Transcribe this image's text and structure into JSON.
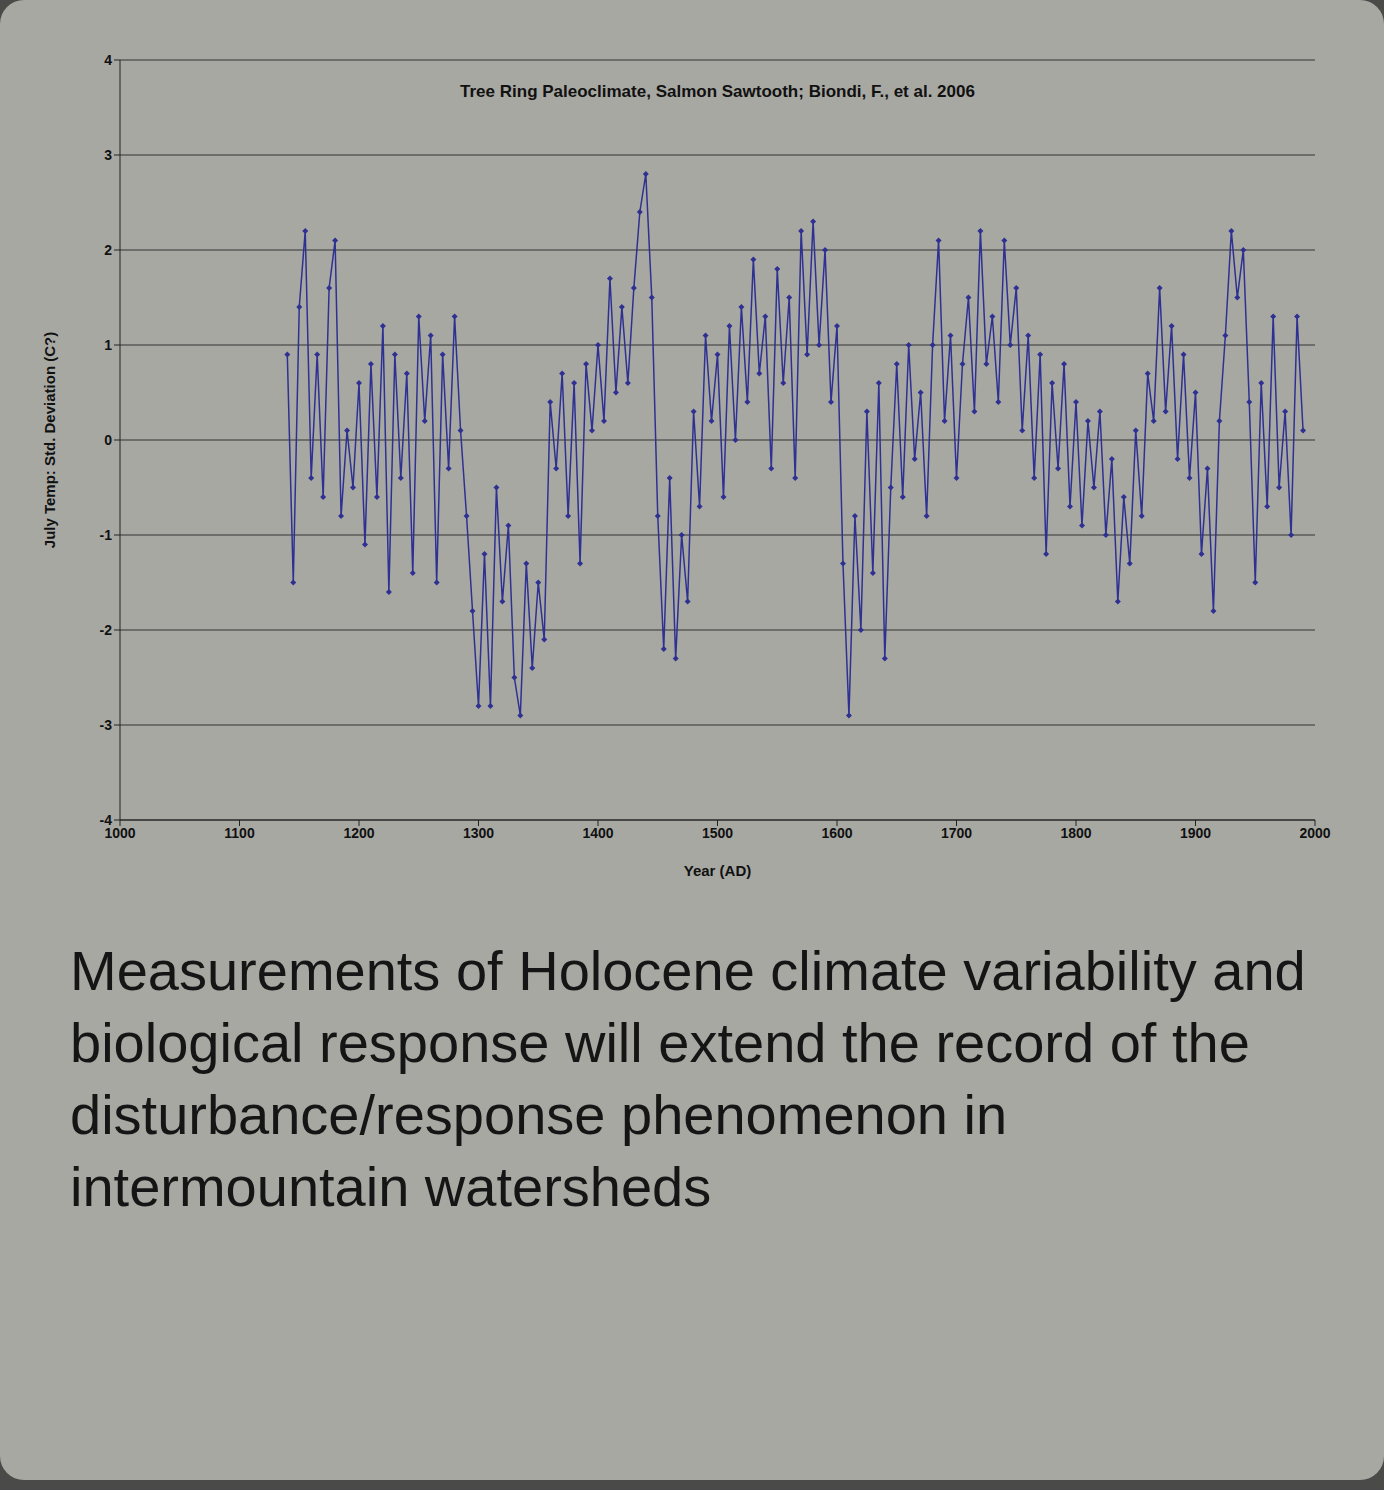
{
  "chart_data": {
    "type": "line",
    "title": "Tree Ring Paleoclimate, Salmon Sawtooth; Biondi, F., et al.  2006",
    "x_label": "Year (AD)",
    "y_label": "July Temp: Std. Deviation (C?)",
    "annotations": [
      "Measurements of Holocene climate variability and biological response will extend the record of the disturbance/response phenomenon in intermountain watersheds"
    ],
    "color": "#2e3192",
    "marker": "diamond",
    "line_style": "solid",
    "grid": true,
    "xlim": [
      1000,
      2000
    ],
    "xticks": [
      1000,
      1100,
      1200,
      1300,
      1400,
      1500,
      1600,
      1700,
      1800,
      1900,
      2000
    ],
    "ylim": [
      -4,
      4
    ],
    "yticks": [
      -4,
      -3,
      -2,
      -1,
      0,
      1,
      2,
      3,
      4
    ],
    "x": [
      1140,
      1145,
      1150,
      1155,
      1160,
      1165,
      1170,
      1175,
      1180,
      1185,
      1190,
      1195,
      1200,
      1205,
      1210,
      1215,
      1220,
      1225,
      1230,
      1235,
      1240,
      1245,
      1250,
      1255,
      1260,
      1265,
      1270,
      1275,
      1280,
      1285,
      1290,
      1295,
      1300,
      1305,
      1310,
      1315,
      1320,
      1325,
      1330,
      1335,
      1340,
      1345,
      1350,
      1355,
      1360,
      1365,
      1370,
      1375,
      1380,
      1385,
      1390,
      1395,
      1400,
      1405,
      1410,
      1415,
      1420,
      1425,
      1430,
      1435,
      1440,
      1445,
      1450,
      1455,
      1460,
      1465,
      1470,
      1475,
      1480,
      1485,
      1490,
      1495,
      1500,
      1505,
      1510,
      1515,
      1520,
      1525,
      1530,
      1535,
      1540,
      1545,
      1550,
      1555,
      1560,
      1565,
      1570,
      1575,
      1580,
      1585,
      1590,
      1595,
      1600,
      1605,
      1610,
      1615,
      1620,
      1625,
      1630,
      1635,
      1640,
      1645,
      1650,
      1655,
      1660,
      1665,
      1670,
      1675,
      1680,
      1685,
      1690,
      1695,
      1700,
      1705,
      1710,
      1715,
      1720,
      1725,
      1730,
      1735,
      1740,
      1745,
      1750,
      1755,
      1760,
      1765,
      1770,
      1775,
      1780,
      1785,
      1790,
      1795,
      1800,
      1805,
      1810,
      1815,
      1820,
      1825,
      1830,
      1835,
      1840,
      1845,
      1850,
      1855,
      1860,
      1865,
      1870,
      1875,
      1880,
      1885,
      1890,
      1895,
      1900,
      1905,
      1910,
      1915,
      1920,
      1925,
      1930,
      1935,
      1940,
      1945,
      1950,
      1955,
      1960,
      1965,
      1970,
      1975,
      1980,
      1985,
      1990
    ],
    "values": [
      0.9,
      -1.5,
      1.4,
      2.2,
      -0.4,
      0.9,
      -0.6,
      1.6,
      2.1,
      -0.8,
      0.1,
      -0.5,
      0.6,
      -1.1,
      0.8,
      -0.6,
      1.2,
      -1.6,
      0.9,
      -0.4,
      0.7,
      -1.4,
      1.3,
      0.2,
      1.1,
      -1.5,
      0.9,
      -0.3,
      1.3,
      0.1,
      -0.8,
      -1.8,
      -2.8,
      -1.2,
      -2.8,
      -0.5,
      -1.7,
      -0.9,
      -2.5,
      -2.9,
      -1.3,
      -2.4,
      -1.5,
      -2.1,
      0.4,
      -0.3,
      0.7,
      -0.8,
      0.6,
      -1.3,
      0.8,
      0.1,
      1.0,
      0.2,
      1.7,
      0.5,
      1.4,
      0.6,
      1.6,
      2.4,
      2.8,
      1.5,
      -0.8,
      -2.2,
      -0.4,
      -2.3,
      -1.0,
      -1.7,
      0.3,
      -0.7,
      1.1,
      0.2,
      0.9,
      -0.6,
      1.2,
      0.0,
      1.4,
      0.4,
      1.9,
      0.7,
      1.3,
      -0.3,
      1.8,
      0.6,
      1.5,
      -0.4,
      2.2,
      0.9,
      2.3,
      1.0,
      2.0,
      0.4,
      1.2,
      -1.3,
      -2.9,
      -0.8,
      -2.0,
      0.3,
      -1.4,
      0.6,
      -2.3,
      -0.5,
      0.8,
      -0.6,
      1.0,
      -0.2,
      0.5,
      -0.8,
      1.0,
      2.1,
      0.2,
      1.1,
      -0.4,
      0.8,
      1.5,
      0.3,
      2.2,
      0.8,
      1.3,
      0.4,
      2.1,
      1.0,
      1.6,
      0.1,
      1.1,
      -0.4,
      0.9,
      -1.2,
      0.6,
      -0.3,
      0.8,
      -0.7,
      0.4,
      -0.9,
      0.2,
      -0.5,
      0.3,
      -1.0,
      -0.2,
      -1.7,
      -0.6,
      -1.3,
      0.1,
      -0.8,
      0.7,
      0.2,
      1.6,
      0.3,
      1.2,
      -0.2,
      0.9,
      -0.4,
      0.5,
      -1.2,
      -0.3,
      -1.8,
      0.2,
      1.1,
      2.2,
      1.5,
      2.0,
      0.4,
      -1.5,
      0.6,
      -0.7,
      1.3,
      -0.5,
      0.3,
      -1.0,
      1.3,
      0.1
    ]
  }
}
